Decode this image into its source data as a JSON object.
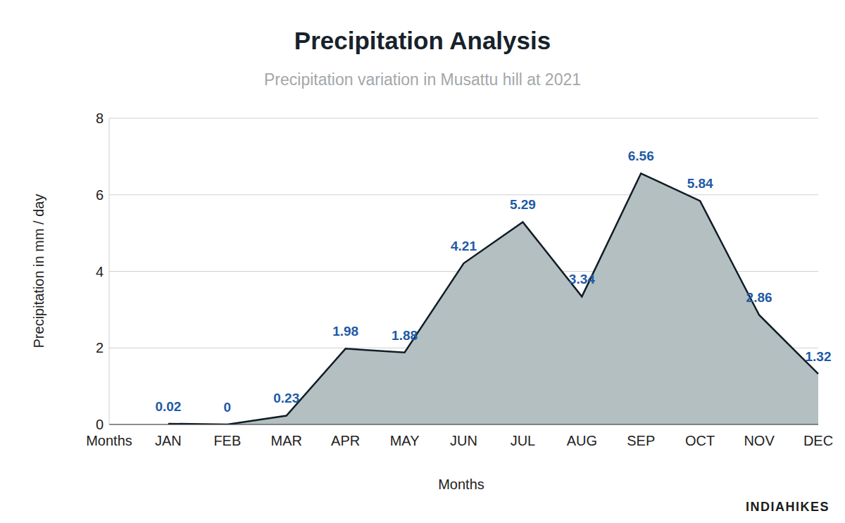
{
  "chart_data": {
    "type": "area",
    "title": "Precipitation Analysis",
    "subtitle": "Precipitation variation in Musattu hill at 2021",
    "x_label": "Months",
    "y_label": "Precipitation in mm / day",
    "annotations": [
      "INDIAHIKES"
    ],
    "categories": [
      "Months",
      "JAN",
      "FEB",
      "MAR",
      "APR",
      "MAY",
      "JUN",
      "JUL",
      "AUG",
      "SEP",
      "OCT",
      "NOV",
      "DEC"
    ],
    "values": [
      null,
      0.02,
      0,
      0.23,
      1.98,
      1.88,
      4.21,
      5.29,
      3.34,
      6.56,
      5.84,
      2.86,
      1.32
    ],
    "color": "#b4bfc2",
    "ylim": [
      0,
      8
    ],
    "yticks": [
      0,
      2,
      4,
      6,
      8
    ],
    "grid": true,
    "data_labels": true
  }
}
